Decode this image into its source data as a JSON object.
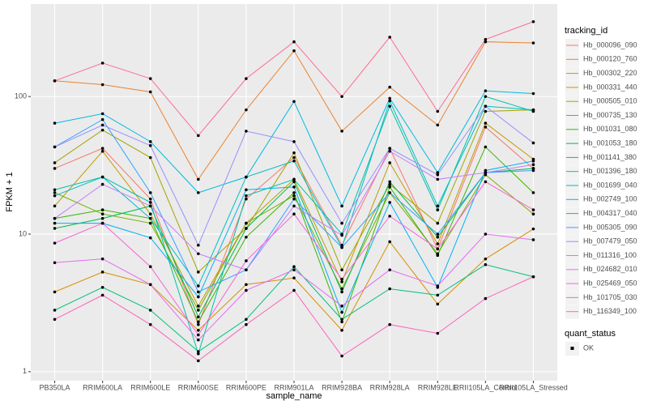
{
  "chart_data": {
    "type": "line",
    "x_label": "sample_name",
    "y_label": "FPKM + 1",
    "categories": [
      "PB350LA",
      "RRIM600LA",
      "RRIM600LE",
      "RRIM600SE",
      "RRIM600PE",
      "RRIM901LA",
      "RRIM928BA",
      "RRIM928LA",
      "RRIM928LE",
      "RRII105LA_Control",
      "RRII105LA_Stressed"
    ],
    "log_scale": true,
    "grid": true,
    "ylim": [
      0.86,
      470
    ],
    "yticks": [
      1,
      10,
      100
    ],
    "legend_title": "tracking_id",
    "legend_position": "right",
    "shape_legend": {
      "title": "quant_status",
      "entries": [
        "OK"
      ]
    },
    "series": [
      {
        "name": "Hb_000096_090",
        "color": "#F8766D",
        "values": [
          30,
          42,
          18,
          2.2,
          18,
          36,
          8.3,
          42,
          7.8,
          60,
          30
        ]
      },
      {
        "name": "Hb_000120_760",
        "color": "#EA8331",
        "values": [
          130,
          122,
          108,
          25,
          80,
          215,
          56,
          117,
          62,
          250,
          245
        ]
      },
      {
        "name": "Hb_000302_220",
        "color": "#D89000",
        "values": [
          3.8,
          5.3,
          4.3,
          2.0,
          4.3,
          4.8,
          2.0,
          8.8,
          3.1,
          6.6,
          10.9
        ]
      },
      {
        "name": "Hb_000331_440",
        "color": "#C09B00",
        "values": [
          16,
          40,
          14,
          3.0,
          12,
          25,
          4.5,
          33,
          8.5,
          64,
          35
        ]
      },
      {
        "name": "Hb_000505_010",
        "color": "#A3A500",
        "values": [
          33,
          57,
          36,
          5.3,
          11,
          39,
          5.5,
          23,
          12,
          78,
          80
        ]
      },
      {
        "name": "Hb_000735_130",
        "color": "#7CAE00",
        "values": [
          20,
          14,
          12,
          2.8,
          12,
          19,
          4.0,
          20,
          7.2,
          27,
          14
        ]
      },
      {
        "name": "Hb_001031_080",
        "color": "#39B600",
        "values": [
          13,
          15,
          13,
          2.3,
          9.5,
          20,
          2.3,
          22,
          7.0,
          43,
          20
        ]
      },
      {
        "name": "Hb_001053_180",
        "color": "#00BB4E",
        "values": [
          11,
          13,
          16,
          2.5,
          11,
          24,
          3.8,
          24,
          9.5,
          28,
          30
        ]
      },
      {
        "name": "Hb_001141_380",
        "color": "#00BF7D",
        "values": [
          2.8,
          4.1,
          2.8,
          1.4,
          2.4,
          5.8,
          2.4,
          4.0,
          3.6,
          6.0,
          4.9
        ]
      },
      {
        "name": "Hb_001396_180",
        "color": "#00C1A3",
        "values": [
          21,
          26,
          17,
          1.35,
          19,
          25,
          10,
          85,
          15,
          100,
          78
        ]
      },
      {
        "name": "Hb_001699_040",
        "color": "#00BFC4",
        "values": [
          19,
          26,
          13,
          4.2,
          26,
          34,
          8,
          93,
          16,
          85,
          80
        ]
      },
      {
        "name": "Hb_002749_100",
        "color": "#00BAE0",
        "values": [
          64,
          75,
          47,
          20,
          26,
          92,
          16,
          97,
          28,
          110,
          105
        ]
      },
      {
        "name": "Hb_004317_040",
        "color": "#00B0F6",
        "values": [
          12,
          12,
          9.4,
          3.5,
          21,
          22,
          2.7,
          17,
          4.1,
          29,
          34
        ]
      },
      {
        "name": "Hb_005305_090",
        "color": "#35A2FF",
        "values": [
          43,
          68,
          20,
          3.8,
          5.5,
          18,
          8,
          20,
          10,
          28,
          29
        ]
      },
      {
        "name": "Hb_007479_050",
        "color": "#9590FF",
        "values": [
          43,
          62,
          44,
          8.3,
          56,
          47,
          12,
          42,
          27,
          85,
          46
        ]
      },
      {
        "name": "Hb_011316_100",
        "color": "#C77CFF",
        "values": [
          13,
          23,
          16,
          7.2,
          5.5,
          16,
          9.8,
          40,
          25,
          28,
          32
        ]
      },
      {
        "name": "Hb_024682_010",
        "color": "#E76BF3",
        "values": [
          6.2,
          6.6,
          4.3,
          1.7,
          3.9,
          5.5,
          3.0,
          5.5,
          4.2,
          10,
          9.1
        ]
      },
      {
        "name": "Hb_025469_050",
        "color": "#FA62DB",
        "values": [
          8.6,
          12,
          5.8,
          1.85,
          6.4,
          14,
          4.7,
          13.5,
          7.8,
          24,
          15
        ]
      },
      {
        "name": "Hb_101705_030",
        "color": "#FF62BC",
        "values": [
          2.4,
          3.6,
          2.2,
          1.2,
          2.2,
          3.9,
          1.3,
          2.2,
          1.9,
          3.4,
          4.9
        ]
      },
      {
        "name": "Hb_116349_100",
        "color": "#FF6C91",
        "values": [
          130,
          175,
          135,
          52,
          135,
          250,
          100,
          270,
          78,
          260,
          350
        ]
      }
    ]
  }
}
